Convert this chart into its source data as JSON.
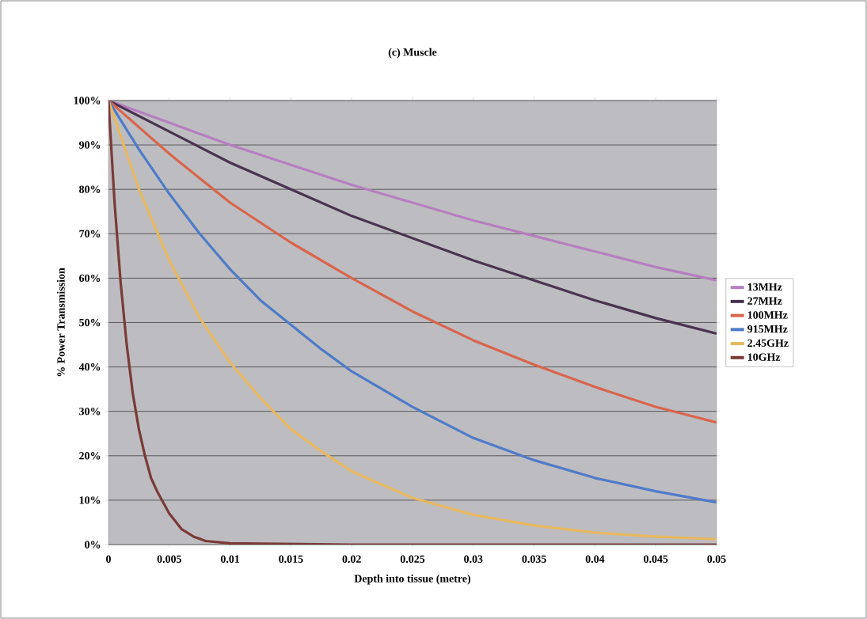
{
  "chart_data": {
    "type": "line",
    "title": "(c) Muscle",
    "xlabel": "Depth into tissue (metre)",
    "ylabel": "% Power Transmission",
    "xlim": [
      0,
      0.05
    ],
    "xticks": [
      0,
      0.005,
      0.01,
      0.015,
      0.02,
      0.025,
      0.03,
      0.035,
      0.04,
      0.045,
      0.05
    ],
    "ylim": [
      0,
      100
    ],
    "yticks": [
      {
        "value": 0,
        "label": "0%"
      },
      {
        "value": 10,
        "label": "10%"
      },
      {
        "value": 20,
        "label": "20%"
      },
      {
        "value": 30,
        "label": "30%"
      },
      {
        "value": 40,
        "label": "40%"
      },
      {
        "value": 50,
        "label": "50%"
      },
      {
        "value": 60,
        "label": "60%"
      },
      {
        "value": 70,
        "label": "70%"
      },
      {
        "value": 80,
        "label": "80%"
      },
      {
        "value": 90,
        "label": "90%"
      },
      {
        "value": 100,
        "label": "100%"
      }
    ],
    "grid": "y",
    "legend": "right",
    "marker": "none",
    "series": [
      {
        "name": "13MHz",
        "color": "#b57fbf",
        "x": [
          0,
          0.005,
          0.01,
          0.015,
          0.02,
          0.025,
          0.03,
          0.035,
          0.04,
          0.045,
          0.05
        ],
        "values": [
          100,
          95,
          90,
          85.5,
          81,
          77,
          73,
          69.5,
          66,
          62.5,
          59.5
        ]
      },
      {
        "name": "27MHz",
        "color": "#4a3350",
        "x": [
          0,
          0.005,
          0.01,
          0.015,
          0.02,
          0.025,
          0.03,
          0.035,
          0.04,
          0.045,
          0.05
        ],
        "values": [
          100,
          93,
          86,
          80,
          74,
          69,
          64,
          59.5,
          55,
          51,
          47.5
        ]
      },
      {
        "name": "100MHz",
        "color": "#d9654c",
        "x": [
          0,
          0.005,
          0.01,
          0.015,
          0.02,
          0.025,
          0.03,
          0.035,
          0.04,
          0.045,
          0.05
        ],
        "values": [
          100,
          88,
          77,
          68,
          60,
          52.5,
          46,
          40.5,
          35.5,
          31,
          27.5
        ]
      },
      {
        "name": "915MHz",
        "color": "#4f7bc8",
        "x": [
          0,
          0.0025,
          0.005,
          0.0075,
          0.01,
          0.0125,
          0.015,
          0.0175,
          0.02,
          0.025,
          0.03,
          0.035,
          0.04,
          0.045,
          0.05
        ],
        "values": [
          100,
          89,
          79,
          70,
          62,
          55,
          49.5,
          44,
          39,
          31,
          24,
          19,
          15,
          12,
          9.5
        ]
      },
      {
        "name": "2.45GHz",
        "color": "#e8b860",
        "x": [
          0,
          0.0025,
          0.005,
          0.0075,
          0.01,
          0.0125,
          0.015,
          0.0175,
          0.02,
          0.025,
          0.03,
          0.035,
          0.04,
          0.045,
          0.05
        ],
        "values": [
          100,
          80,
          64,
          51,
          41,
          33,
          26,
          21,
          16.5,
          10.5,
          6.7,
          4.3,
          2.7,
          1.8,
          1.2
        ]
      },
      {
        "name": "10GHz",
        "color": "#7a3a38",
        "x": [
          0,
          0.0005,
          0.001,
          0.0015,
          0.002,
          0.0025,
          0.003,
          0.0035,
          0.004,
          0.005,
          0.006,
          0.007,
          0.008,
          0.01,
          0.02,
          0.03,
          0.04,
          0.05
        ],
        "values": [
          100,
          77,
          59,
          45,
          34,
          26,
          20,
          15,
          12,
          7,
          3.5,
          1.8,
          0.8,
          0.3,
          0,
          0,
          0,
          0
        ]
      }
    ]
  }
}
